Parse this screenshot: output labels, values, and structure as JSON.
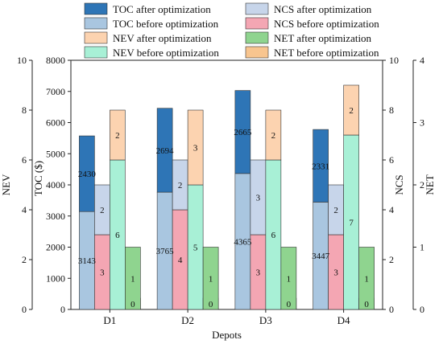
{
  "chart_data": {
    "type": "bar",
    "categories": [
      "D1",
      "D2",
      "D3",
      "D4"
    ],
    "xlabel": "Depots",
    "axes": {
      "toc": {
        "label": "TOC ($)",
        "ylim": [
          0,
          8000
        ],
        "ticks": [
          "0",
          "1000",
          "2000",
          "3000",
          "4000",
          "5000",
          "6000",
          "7000",
          "8000"
        ]
      },
      "nev": {
        "label": "NEV",
        "ylim": [
          0,
          10
        ],
        "ticks": [
          "0",
          "2",
          "4",
          "6",
          "8",
          "10"
        ]
      },
      "ncs": {
        "label": "NCS",
        "ylim": [
          0,
          10
        ],
        "ticks": [
          "0",
          "2",
          "4",
          "6",
          "8",
          "10"
        ]
      },
      "net": {
        "label": "NET",
        "ylim": [
          0,
          4
        ],
        "ticks": [
          "0",
          "1",
          "2",
          "3",
          "4"
        ]
      }
    },
    "legend_position": "top",
    "series": [
      {
        "name": "TOC before optimization",
        "axis": "toc",
        "group": "toc",
        "color": "#a9c6e0",
        "values": [
          3143,
          3765,
          4365,
          3447
        ],
        "labels": [
          "3143",
          "3765",
          "4365",
          "3447"
        ]
      },
      {
        "name": "TOC after optimization",
        "axis": "toc",
        "group": "toc",
        "color": "#2e75b6",
        "values": [
          2430,
          2694,
          2665,
          2331
        ],
        "labels": [
          "2430",
          "2694",
          "2665",
          "2331"
        ]
      },
      {
        "name": "NCS before optimization",
        "axis": "ncs",
        "group": "ncs",
        "color": "#f4a6b3",
        "values": [
          3,
          4,
          3,
          3
        ],
        "labels": [
          "3",
          "4",
          "3",
          "3"
        ]
      },
      {
        "name": "NCS after optimization",
        "axis": "ncs",
        "group": "ncs",
        "color": "#c7d5ea",
        "values": [
          2,
          2,
          3,
          2
        ],
        "labels": [
          "2",
          "2",
          "3",
          "2"
        ]
      },
      {
        "name": "NEV before optimization",
        "axis": "nev",
        "group": "nev",
        "color": "#a8f0d6",
        "values": [
          6,
          5,
          6,
          7
        ],
        "labels": [
          "6",
          "5",
          "6",
          "7"
        ]
      },
      {
        "name": "NEV after optimization",
        "axis": "nev",
        "group": "nev",
        "color": "#fcd3b0",
        "values": [
          2,
          3,
          2,
          2
        ],
        "labels": [
          "2",
          "3",
          "2",
          "2"
        ]
      },
      {
        "name": "NET before optimization",
        "axis": "net",
        "group": "net",
        "color": "#f8c58f",
        "values": [
          0,
          0,
          0,
          0
        ],
        "labels": [
          "0",
          "0",
          "0",
          "0"
        ]
      },
      {
        "name": "NET after optimization",
        "axis": "net",
        "group": "net",
        "color": "#8fd48f",
        "values": [
          1,
          1,
          1,
          1
        ],
        "labels": [
          "1",
          "1",
          "1",
          "1"
        ]
      }
    ],
    "legend_order": [
      "TOC after optimization",
      "TOC before optimization",
      "NEV after optimization",
      "NEV before optimization",
      "NCS after optimization",
      "NCS before optimization",
      "NET after optimization",
      "NET before optimization"
    ]
  }
}
